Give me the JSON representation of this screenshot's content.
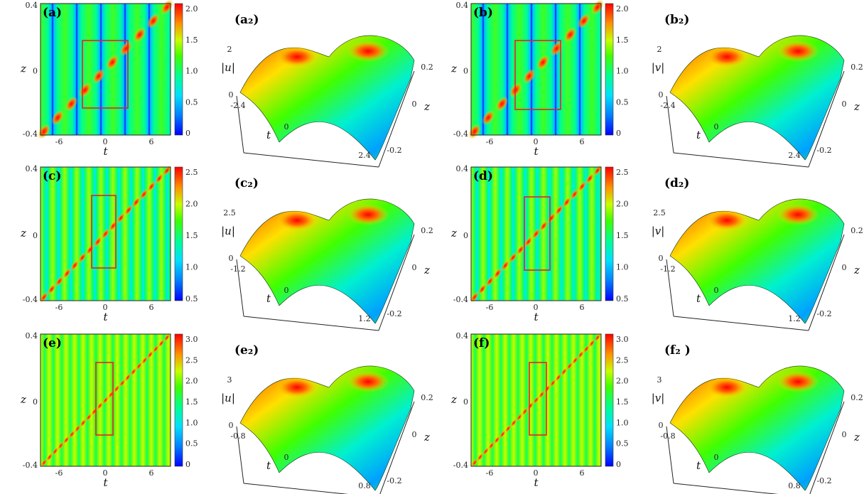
{
  "figure": {
    "rows": [
      {
        "left": {
          "density": {
            "label": "(a)",
            "xlabel": "t",
            "ylabel": "z",
            "xticks": [
              "-6",
              "0",
              "6"
            ],
            "yticks": [
              "0.4",
              "0",
              "-0.4"
            ],
            "cbar_ticks": [
              "2.0",
              "1.5",
              "1.0",
              "0.5",
              "0"
            ]
          },
          "surface": {
            "label": "(a₂)",
            "zaxis": "|u|",
            "zticks": [
              "2",
              "0"
            ],
            "tticks": [
              "-2.4",
              "0",
              "2.4"
            ],
            "zdir_ticks": [
              "0.2",
              "0",
              "-0.2"
            ],
            "t_label": "t",
            "z_label": "z"
          }
        },
        "right": {
          "density": {
            "label": "(b)",
            "xlabel": "t",
            "ylabel": "z",
            "xticks": [
              "-6",
              "0",
              "6"
            ],
            "yticks": [
              "0.4",
              "0",
              "-0.4"
            ],
            "cbar_ticks": [
              "2.0",
              "1.5",
              "1.0",
              "0.5",
              "0"
            ]
          },
          "surface": {
            "label": "(b₂)",
            "zaxis": "|v|",
            "zticks": [
              "2",
              "0"
            ],
            "tticks": [
              "-2.4",
              "0",
              "2.4"
            ],
            "zdir_ticks": [
              "0.2",
              "0",
              "-0.2"
            ],
            "t_label": "t",
            "z_label": "z"
          }
        }
      },
      {
        "left": {
          "density": {
            "label": "(c)",
            "xlabel": "t",
            "ylabel": "z",
            "xticks": [
              "-6",
              "0",
              "6"
            ],
            "yticks": [
              "0.4",
              "0",
              "-0.4"
            ],
            "cbar_ticks": [
              "2.5",
              "2.0",
              "1.5",
              "1.0",
              "0.5"
            ]
          },
          "surface": {
            "label": "(c₂)",
            "zaxis": "|u|",
            "zticks": [
              "2.5",
              "0"
            ],
            "tticks": [
              "-1.2",
              "0",
              "1.2"
            ],
            "zdir_ticks": [
              "0.2",
              "0",
              "-0.2"
            ],
            "t_label": "t",
            "z_label": "z"
          }
        },
        "right": {
          "density": {
            "label": "(d)",
            "xlabel": "t",
            "ylabel": "z",
            "xticks": [
              "-6",
              "0",
              "6"
            ],
            "yticks": [
              "0.4",
              "0",
              "-0.4"
            ],
            "cbar_ticks": [
              "2.5",
              "2.0",
              "1.5",
              "1.0",
              "0.5"
            ]
          },
          "surface": {
            "label": "(d₂)",
            "zaxis": "|v|",
            "zticks": [
              "2.5",
              "0"
            ],
            "tticks": [
              "-1.2",
              "0",
              "1.2"
            ],
            "zdir_ticks": [
              "0.2",
              "0",
              "-0.2"
            ],
            "t_label": "t",
            "z_label": "z"
          }
        }
      },
      {
        "left": {
          "density": {
            "label": "(e)",
            "xlabel": "t",
            "ylabel": "z",
            "xticks": [
              "-6",
              "0",
              "6"
            ],
            "yticks": [
              "0.4",
              "0",
              "-0.4"
            ],
            "cbar_ticks": [
              "3.0",
              "2.5",
              "2.0",
              "1.5",
              "1.0",
              "0.5",
              "0"
            ]
          },
          "surface": {
            "label": "(e₂)",
            "zaxis": "|u|",
            "zticks": [
              "3",
              "0"
            ],
            "tticks": [
              "-0.8",
              "0",
              "0.8"
            ],
            "zdir_ticks": [
              "0.2",
              "0",
              "-0.2"
            ],
            "t_label": "t",
            "z_label": "z"
          }
        },
        "right": {
          "density": {
            "label": "(f)",
            "xlabel": "t",
            "ylabel": "z",
            "xticks": [
              "-6",
              "0",
              "6"
            ],
            "yticks": [
              "0.4",
              "0",
              "-0.4"
            ],
            "cbar_ticks": [
              "3.0",
              "2.5",
              "2.0",
              "1.5",
              "1.0",
              "0.5",
              "0"
            ]
          },
          "surface": {
            "label": "(f₂ )",
            "zaxis": "|v|",
            "zticks": [
              "3",
              "0"
            ],
            "tticks": [
              "-0.8",
              "0",
              "0.8"
            ],
            "zdir_ticks": [
              "0.2",
              "0",
              "-0.2"
            ],
            "t_label": "t",
            "z_label": "z"
          }
        }
      }
    ],
    "colormap": [
      "#0000ff",
      "#00a0ff",
      "#00ffff",
      "#00ff80",
      "#40ff00",
      "#ffff00",
      "#ff8000",
      "#ff0000"
    ],
    "highlight_box_color": "#e8202a"
  }
}
